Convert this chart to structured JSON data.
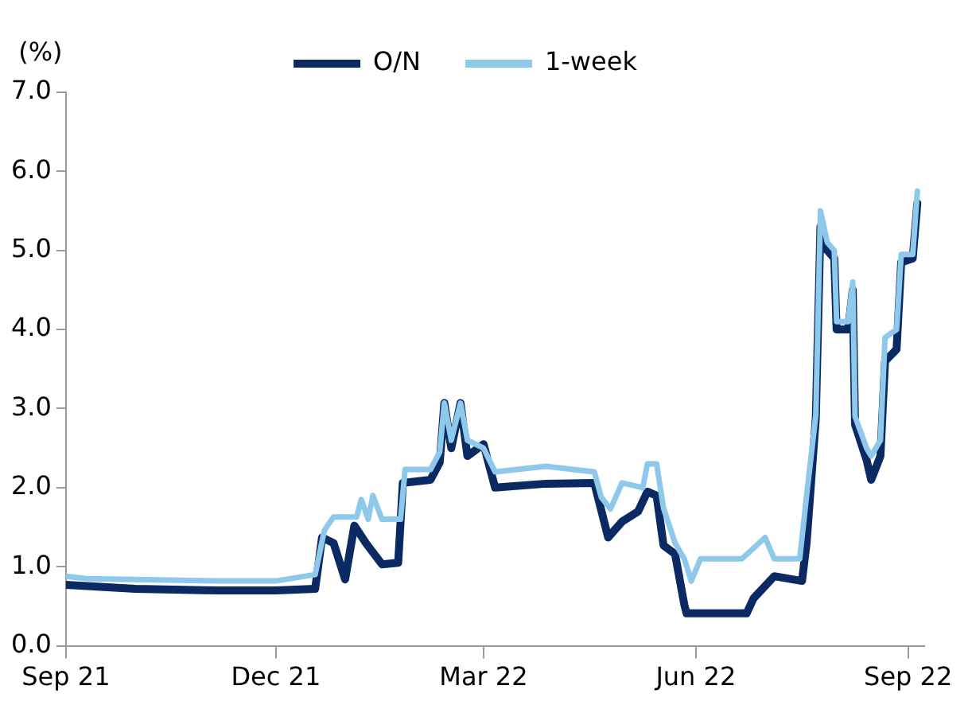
{
  "chart_data": {
    "type": "line",
    "ylabel": "(%)",
    "legend": "top",
    "xlim": [
      "2021-09-01",
      "2022-09-08"
    ],
    "xticks": [
      {
        "value": "2021-09-01",
        "label": "Sep 21"
      },
      {
        "value": "2021-12-01",
        "label": "Dec 21"
      },
      {
        "value": "2022-03-01",
        "label": "Mar 22"
      },
      {
        "value": "2022-06-01",
        "label": "Jun 22"
      },
      {
        "value": "2022-09-01",
        "label": "Sep 22"
      }
    ],
    "ylim": [
      0,
      7
    ],
    "yticks": [
      {
        "value": 0,
        "label": "0.0"
      },
      {
        "value": 1,
        "label": "1.0"
      },
      {
        "value": 2,
        "label": "2.0"
      },
      {
        "value": 3,
        "label": "3.0"
      },
      {
        "value": 4,
        "label": "4.0"
      },
      {
        "value": 5,
        "label": "5.0"
      },
      {
        "value": 6,
        "label": "6.0"
      },
      {
        "value": 7,
        "label": "7.0"
      }
    ],
    "grid": false,
    "marker": "none",
    "line_style": "solid",
    "series": [
      {
        "name": "O/N",
        "color": "#0b2a63",
        "x": [
          "2021-09-01",
          "2021-10-01",
          "2021-11-06",
          "2021-12-01",
          "2021-12-18",
          "2021-12-21",
          "2021-12-26",
          "2021-12-31",
          "2022-01-04",
          "2022-01-09",
          "2022-01-16",
          "2022-01-23",
          "2022-01-25",
          "2022-02-06",
          "2022-02-10",
          "2022-02-12",
          "2022-02-15",
          "2022-02-19",
          "2022-02-22",
          "2022-03-01",
          "2022-03-06",
          "2022-03-28",
          "2022-04-18",
          "2022-04-24",
          "2022-04-30",
          "2022-05-07",
          "2022-05-11",
          "2022-05-15",
          "2022-05-18",
          "2022-05-23",
          "2022-05-27",
          "2022-05-28",
          "2022-06-23",
          "2022-06-26",
          "2022-07-05",
          "2022-07-17",
          "2022-07-19",
          "2022-07-23",
          "2022-07-25",
          "2022-07-28",
          "2022-07-31",
          "2022-08-01",
          "2022-08-06",
          "2022-08-08",
          "2022-08-09",
          "2022-08-14",
          "2022-08-16",
          "2022-08-20",
          "2022-08-22",
          "2022-08-27",
          "2022-08-29",
          "2022-09-03",
          "2022-09-05"
        ],
        "values": [
          0.77,
          0.72,
          0.7,
          0.7,
          0.72,
          1.37,
          1.3,
          0.84,
          1.52,
          1.3,
          1.03,
          1.05,
          2.06,
          2.1,
          2.32,
          3.07,
          2.5,
          3.07,
          2.4,
          2.55,
          2.0,
          2.05,
          2.06,
          1.37,
          1.57,
          1.7,
          1.95,
          1.9,
          1.27,
          1.16,
          0.52,
          0.41,
          0.41,
          0.6,
          0.88,
          0.82,
          1.3,
          2.88,
          5.3,
          5.0,
          4.9,
          4.0,
          4.0,
          4.5,
          2.8,
          2.35,
          2.1,
          2.4,
          3.6,
          3.75,
          4.85,
          4.9,
          5.6
        ]
      },
      {
        "name": "1-week",
        "color": "#8ec8ea",
        "x": [
          "2021-09-01",
          "2021-09-10",
          "2021-10-01",
          "2021-11-06",
          "2021-12-01",
          "2021-12-18",
          "2021-12-22",
          "2021-12-26",
          "2022-01-05",
          "2022-01-07",
          "2022-01-10",
          "2022-01-12",
          "2022-01-16",
          "2022-01-24",
          "2022-01-26",
          "2022-02-06",
          "2022-02-10",
          "2022-02-12",
          "2022-02-15",
          "2022-02-19",
          "2022-02-22",
          "2022-03-01",
          "2022-03-06",
          "2022-03-28",
          "2022-04-18",
          "2022-04-21",
          "2022-04-25",
          "2022-04-30",
          "2022-05-09",
          "2022-05-11",
          "2022-05-15",
          "2022-05-18",
          "2022-05-23",
          "2022-05-27",
          "2022-05-30",
          "2022-06-03",
          "2022-06-21",
          "2022-07-01",
          "2022-07-05",
          "2022-07-16",
          "2022-07-19",
          "2022-07-23",
          "2022-07-25",
          "2022-07-28",
          "2022-07-31",
          "2022-08-01",
          "2022-08-06",
          "2022-08-08",
          "2022-08-09",
          "2022-08-14",
          "2022-08-16",
          "2022-08-20",
          "2022-08-22",
          "2022-08-27",
          "2022-08-29",
          "2022-09-03",
          "2022-09-05"
        ],
        "values": [
          0.88,
          0.85,
          0.84,
          0.82,
          0.82,
          0.9,
          1.46,
          1.63,
          1.63,
          1.85,
          1.6,
          1.9,
          1.6,
          1.6,
          2.23,
          2.23,
          2.45,
          3.07,
          2.6,
          3.07,
          2.6,
          2.5,
          2.2,
          2.27,
          2.2,
          1.88,
          1.73,
          2.06,
          2.0,
          2.3,
          2.3,
          1.74,
          1.3,
          1.1,
          0.82,
          1.1,
          1.1,
          1.37,
          1.1,
          1.1,
          1.9,
          2.92,
          5.5,
          5.1,
          5.0,
          4.1,
          4.1,
          4.6,
          2.9,
          2.5,
          2.4,
          2.6,
          3.9,
          4.0,
          4.95,
          4.95,
          5.75
        ]
      }
    ]
  }
}
